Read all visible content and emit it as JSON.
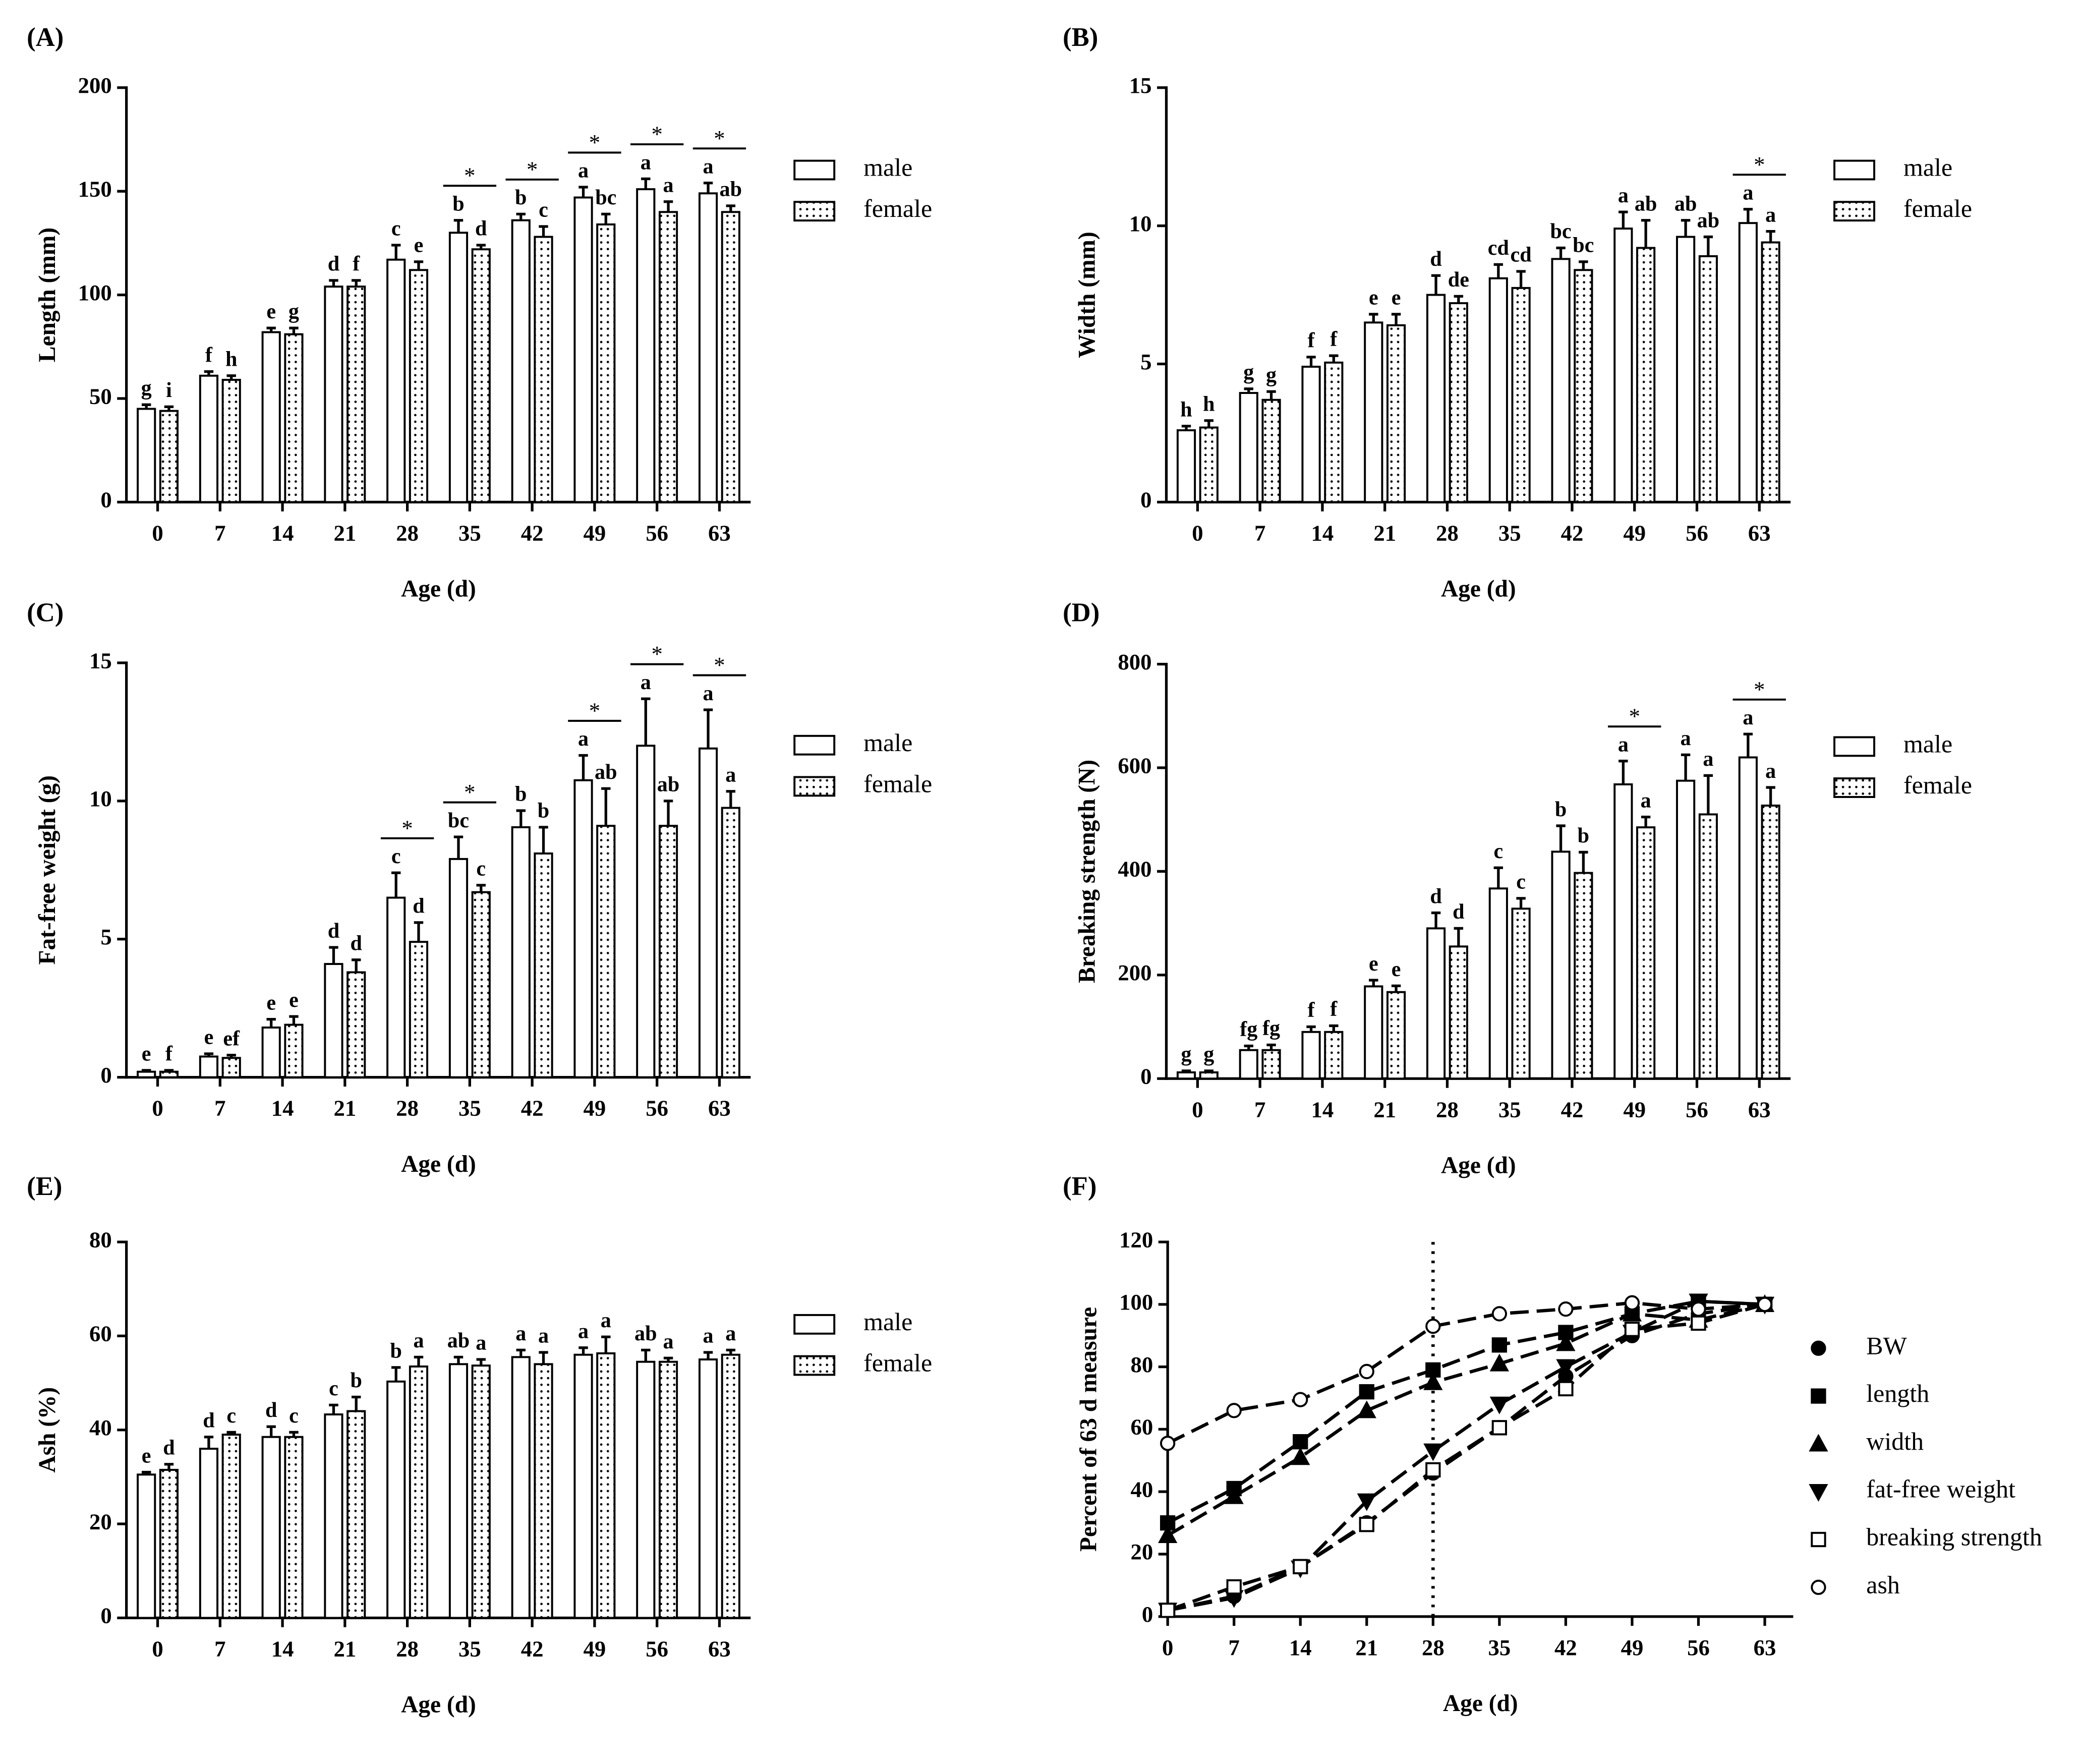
{
  "chart_data": [
    {
      "type": "bar",
      "panel_label": "(A)",
      "ylabel": "Length (mm)",
      "xlabel": "Age (d)",
      "categories": [
        "0",
        "7",
        "14",
        "21",
        "28",
        "35",
        "42",
        "49",
        "56",
        "63"
      ],
      "ylim": [
        0,
        200
      ],
      "yticks": [
        0,
        50,
        100,
        150,
        200
      ],
      "legend": "right",
      "series": [
        {
          "name": "male",
          "color": "#ffffff",
          "pattern": "none",
          "values": [
            45,
            61,
            82,
            104,
            117,
            130,
            136,
            147,
            151,
            149
          ],
          "errors": [
            2,
            2,
            2,
            3,
            7,
            6,
            3,
            5,
            5,
            5
          ],
          "letters": [
            "g",
            "f",
            "e",
            "d",
            "c",
            "b",
            "b",
            "a",
            "a",
            "a"
          ]
        },
        {
          "name": "female",
          "color": "#ffffff",
          "pattern": "dots",
          "values": [
            44,
            59,
            81,
            104,
            112,
            122,
            128,
            134,
            140,
            140
          ],
          "errors": [
            2,
            2,
            3,
            3,
            4,
            2,
            5,
            5,
            5,
            3
          ],
          "letters": [
            "i",
            "h",
            "g",
            "f",
            "e",
            "d",
            "c",
            "bc",
            "a",
            "ab"
          ]
        }
      ],
      "significance": [
        null,
        null,
        null,
        null,
        null,
        "*",
        "*",
        "*",
        "*",
        "*"
      ]
    },
    {
      "type": "bar",
      "panel_label": "(B)",
      "ylabel": "Width (mm)",
      "xlabel": "Age (d)",
      "categories": [
        "0",
        "7",
        "14",
        "21",
        "28",
        "35",
        "42",
        "49",
        "56",
        "63"
      ],
      "ylim": [
        0,
        15
      ],
      "yticks": [
        0,
        5,
        10,
        15
      ],
      "legend": "right",
      "series": [
        {
          "name": "male",
          "color": "#ffffff",
          "pattern": "none",
          "values": [
            2.6,
            3.95,
            4.9,
            6.5,
            7.5,
            8.1,
            8.8,
            9.9,
            9.6,
            10.1
          ],
          "errors": [
            0.15,
            0.15,
            0.35,
            0.3,
            0.7,
            0.5,
            0.4,
            0.6,
            0.6,
            0.5
          ],
          "letters": [
            "h",
            "g",
            "f",
            "e",
            "d",
            "cd",
            "bc",
            "a",
            "ab",
            "a"
          ]
        },
        {
          "name": "female",
          "color": "#ffffff",
          "pattern": "dots",
          "values": [
            2.7,
            3.7,
            5.05,
            6.4,
            7.2,
            7.75,
            8.4,
            9.2,
            8.9,
            9.4
          ],
          "errors": [
            0.25,
            0.3,
            0.25,
            0.4,
            0.25,
            0.6,
            0.3,
            1.0,
            0.7,
            0.4
          ],
          "letters": [
            "h",
            "g",
            "f",
            "e",
            "de",
            "cd",
            "bc",
            "ab",
            "ab",
            "a"
          ]
        }
      ],
      "significance": [
        null,
        null,
        null,
        null,
        null,
        null,
        null,
        null,
        null,
        "*"
      ]
    },
    {
      "type": "bar",
      "panel_label": "(C)",
      "ylabel": "Fat-free weight (g)",
      "xlabel": "Age (d)",
      "categories": [
        "0",
        "7",
        "14",
        "21",
        "28",
        "35",
        "42",
        "49",
        "56",
        "63"
      ],
      "ylim": [
        0,
        15
      ],
      "yticks": [
        0,
        5,
        10,
        15
      ],
      "legend": "right",
      "series": [
        {
          "name": "male",
          "color": "#ffffff",
          "pattern": "none",
          "values": [
            0.2,
            0.75,
            1.8,
            4.1,
            6.5,
            7.9,
            9.05,
            10.75,
            12.0,
            11.9
          ],
          "errors": [
            0.05,
            0.1,
            0.3,
            0.6,
            0.9,
            0.8,
            0.6,
            0.9,
            1.7,
            1.4
          ],
          "letters": [
            "e",
            "e",
            "e",
            "d",
            "c",
            "bc",
            "b",
            "a",
            "a",
            "a"
          ]
        },
        {
          "name": "female",
          "color": "#ffffff",
          "pattern": "dots",
          "values": [
            0.2,
            0.7,
            1.9,
            3.8,
            4.9,
            6.7,
            8.1,
            9.1,
            9.1,
            9.75
          ],
          "errors": [
            0.05,
            0.1,
            0.3,
            0.45,
            0.7,
            0.25,
            0.95,
            1.35,
            0.9,
            0.6
          ],
          "letters": [
            "f",
            "ef",
            "e",
            "d",
            "d",
            "c",
            "b",
            "ab",
            "ab",
            "a"
          ]
        }
      ],
      "significance": [
        null,
        null,
        null,
        null,
        "*",
        "*",
        null,
        "*",
        "*",
        "*"
      ]
    },
    {
      "type": "bar",
      "panel_label": "(D)",
      "ylabel": "Breaking strength (N)",
      "xlabel": "Age (d)",
      "categories": [
        "0",
        "7",
        "14",
        "21",
        "28",
        "35",
        "42",
        "49",
        "56",
        "63"
      ],
      "ylim": [
        0,
        800
      ],
      "yticks": [
        0,
        200,
        400,
        600,
        800
      ],
      "legend": "right",
      "series": [
        {
          "name": "male",
          "color": "#ffffff",
          "pattern": "none",
          "values": [
            12,
            55,
            90,
            178,
            290,
            367,
            438,
            568,
            575,
            620
          ],
          "errors": [
            3,
            8,
            10,
            12,
            30,
            40,
            50,
            45,
            50,
            45
          ],
          "letters": [
            "g",
            "fg",
            "f",
            "e",
            "d",
            "c",
            "b",
            "a",
            "a",
            "a"
          ]
        },
        {
          "name": "female",
          "color": "#ffffff",
          "pattern": "dots",
          "values": [
            12,
            55,
            90,
            167,
            255,
            328,
            397,
            485,
            510,
            527
          ],
          "errors": [
            3,
            10,
            12,
            12,
            35,
            20,
            40,
            20,
            75,
            35
          ],
          "letters": [
            "g",
            "fg",
            "f",
            "e",
            "d",
            "c",
            "b",
            "a",
            "a",
            "a"
          ]
        }
      ],
      "significance": [
        null,
        null,
        null,
        null,
        null,
        null,
        null,
        "*",
        null,
        "*"
      ]
    },
    {
      "type": "bar",
      "panel_label": "(E)",
      "ylabel": "Ash (%)",
      "xlabel": "Age (d)",
      "categories": [
        "0",
        "7",
        "14",
        "21",
        "28",
        "35",
        "42",
        "49",
        "56",
        "63"
      ],
      "ylim": [
        0,
        80
      ],
      "yticks": [
        0,
        20,
        40,
        60,
        80
      ],
      "legend": "right",
      "series": [
        {
          "name": "male",
          "color": "#ffffff",
          "pattern": "none",
          "values": [
            30.5,
            36,
            38.5,
            43.3,
            50.3,
            54,
            55.5,
            56,
            54.5,
            55
          ],
          "errors": [
            0.5,
            2.5,
            2.2,
            2,
            3,
            1.5,
            1.5,
            1.5,
            2.5,
            1.5
          ],
          "letters": [
            "e",
            "d",
            "d",
            "c",
            "b",
            "ab",
            "a",
            "a",
            "ab",
            "a"
          ]
        },
        {
          "name": "female",
          "color": "#ffffff",
          "pattern": "dots",
          "values": [
            31.5,
            39,
            38.5,
            44,
            53.5,
            53.7,
            54,
            56.3,
            54.5,
            56
          ],
          "errors": [
            1.2,
            0.5,
            1,
            3,
            2,
            1.3,
            2.5,
            3.5,
            0.8,
            1
          ],
          "letters": [
            "d",
            "c",
            "c",
            "b",
            "a",
            "a",
            "a",
            "a",
            "a",
            "a"
          ]
        }
      ],
      "significance": [
        null,
        null,
        null,
        null,
        null,
        null,
        null,
        null,
        null,
        null
      ]
    },
    {
      "type": "line",
      "panel_label": "(F)",
      "ylabel": "Percent of 63 d measure",
      "xlabel": "Age (d)",
      "x": [
        0,
        7,
        14,
        21,
        28,
        35,
        42,
        49,
        56,
        63
      ],
      "xlim": [
        0,
        66
      ],
      "xticks": [
        0,
        7,
        14,
        21,
        28,
        35,
        42,
        49,
        56,
        63
      ],
      "ylim": [
        0,
        120
      ],
      "yticks": [
        0,
        20,
        40,
        60,
        80,
        100,
        120
      ],
      "legend": "right",
      "reference_line_x": 28,
      "series": [
        {
          "name": "BW",
          "marker": "circle",
          "color": "#000000",
          "filled": true,
          "values": [
            2,
            6.5,
            16,
            30,
            46,
            60.5,
            77,
            90,
            97,
            100
          ]
        },
        {
          "name": "length",
          "marker": "square",
          "color": "#000000",
          "filled": true,
          "values": [
            30,
            41,
            56,
            72,
            79,
            87,
            91,
            97,
            101,
            100
          ]
        },
        {
          "name": "width",
          "marker": "triangle-up",
          "color": "#000000",
          "filled": true,
          "values": [
            26,
            38.5,
            51,
            66,
            75,
            81,
            87.5,
            97,
            95,
            100
          ]
        },
        {
          "name": "fat-free weight",
          "marker": "triangle-down",
          "color": "#000000",
          "filled": true,
          "values": [
            2,
            6,
            15.5,
            37,
            53,
            68,
            80,
            91,
            101,
            100
          ]
        },
        {
          "name": "breaking strength",
          "marker": "square",
          "color": "#000000",
          "filled": false,
          "values": [
            2,
            9.5,
            16,
            29.5,
            47,
            60.5,
            73,
            92,
            94,
            100
          ]
        },
        {
          "name": "ash",
          "marker": "circle",
          "color": "#000000",
          "filled": false,
          "values": [
            55.5,
            66,
            69.5,
            78.5,
            93,
            97,
            98.5,
            100.5,
            98.5,
            100
          ]
        }
      ]
    }
  ]
}
